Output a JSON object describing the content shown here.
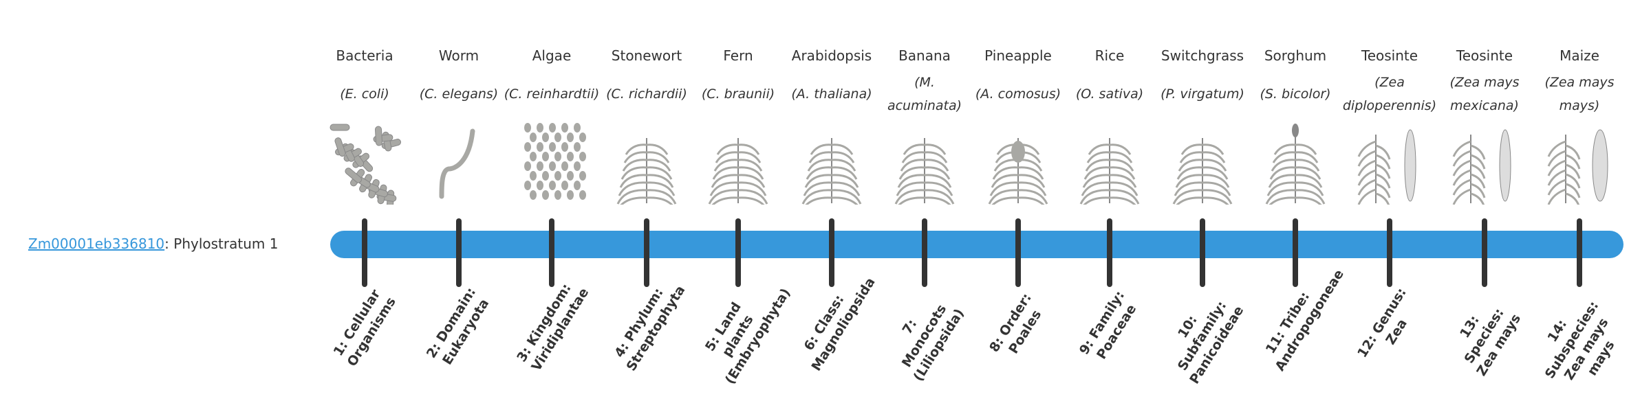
{
  "gene": {
    "id_link": "Zm00001eb336810",
    "suffix": ": Phylostratum 1"
  },
  "colors": {
    "bar": "#3798db",
    "tick": "#333333",
    "link": "#3697db"
  },
  "strata": [
    {
      "common": "Bacteria",
      "sci": "(E. coli)",
      "icon": "bacteria-rods-icon",
      "label": "1: Cellular Organisms"
    },
    {
      "common": "Worm",
      "sci": "(C. elegans)",
      "icon": "worm-icon",
      "label": "2: Domain: Eukaryota"
    },
    {
      "common": "Algae",
      "sci": "(C. reinhardtii)",
      "icon": "algae-cells-icon",
      "label": "3: Kingdom: Viridiplantae"
    },
    {
      "common": "Stonewort",
      "sci": "(C. richardii)",
      "icon": "stonewort-icon",
      "label": "4: Phylum: Streptophyta"
    },
    {
      "common": "Fern",
      "sci": "(C. braunii)",
      "icon": "fern-icon",
      "label": "5: Land plants (Embryophyta)"
    },
    {
      "common": "Arabidopsis",
      "sci": "(A. thaliana)",
      "icon": "arabidopsis-icon",
      "label": "6: Class: Magnoliopsida"
    },
    {
      "common": "Banana",
      "sci": "(M. acuminata)",
      "icon": "banana-plant-icon",
      "label": "7: Monocots (Liliopsida)"
    },
    {
      "common": "Pineapple",
      "sci": "(A. comosus)",
      "icon": "pineapple-icon",
      "label": "8: Order: Poales"
    },
    {
      "common": "Rice",
      "sci": "(O. sativa)",
      "icon": "rice-icon",
      "label": "9: Family: Poaceae"
    },
    {
      "common": "Switchgrass",
      "sci": "(P. virgatum)",
      "icon": "switchgrass-icon",
      "label": "10: Subfamily: Panicoideae"
    },
    {
      "common": "Sorghum",
      "sci": "(S. bicolor)",
      "icon": "sorghum-icon",
      "label": "11: Tribe: Andropogoneae"
    },
    {
      "common": "Teosinte",
      "sci": "(Zea diploperennis)",
      "icon": "teosinte-icon",
      "label": "12: Genus: Zea"
    },
    {
      "common": "Teosinte",
      "sci": "(Zea mays mexicana)",
      "icon": "teosinte-icon",
      "label": "13: Species: Zea mays"
    },
    {
      "common": "Maize",
      "sci": "(Zea mays mays)",
      "icon": "maize-icon",
      "label": "14: Subspecies: Zea mays mays"
    }
  ]
}
